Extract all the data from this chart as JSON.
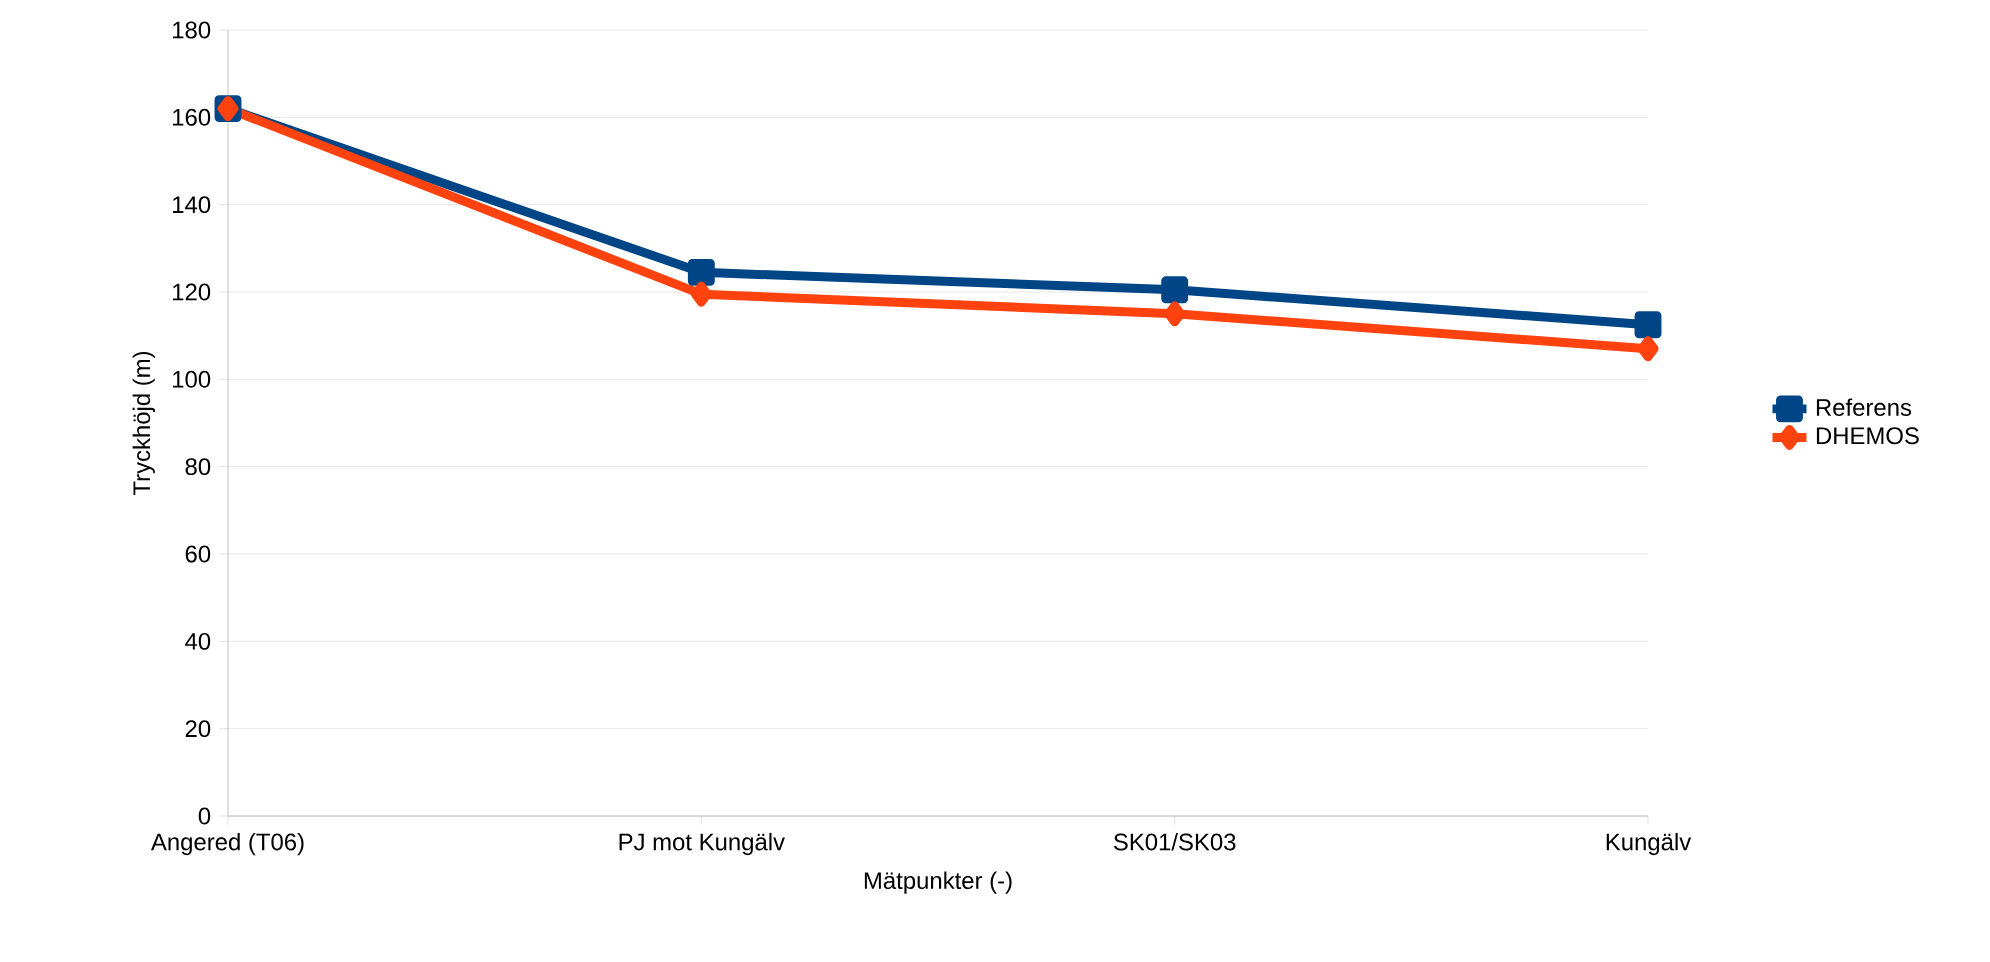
{
  "chart_data": {
    "type": "line",
    "xlabel": "Mätpunkter (-)",
    "ylabel": "Tryckhöjd (m)",
    "categories": [
      "Angered (T06)",
      "PJ mot Kungälv",
      "SK01/SK03",
      "Kungälv"
    ],
    "series": [
      {
        "name": "Referens",
        "color": "#004586",
        "marker": "square",
        "values": [
          162,
          124.5,
          120.5,
          112.5
        ]
      },
      {
        "name": "DHEMOS",
        "color": "#ff420e",
        "marker": "diamond",
        "values": [
          162,
          119.5,
          115,
          107
        ]
      }
    ],
    "ylim": [
      0,
      180
    ],
    "yticks": [
      0,
      20,
      40,
      60,
      80,
      100,
      120,
      140,
      160,
      180
    ],
    "grid": "y",
    "legend": "right",
    "line_style": "solid"
  }
}
